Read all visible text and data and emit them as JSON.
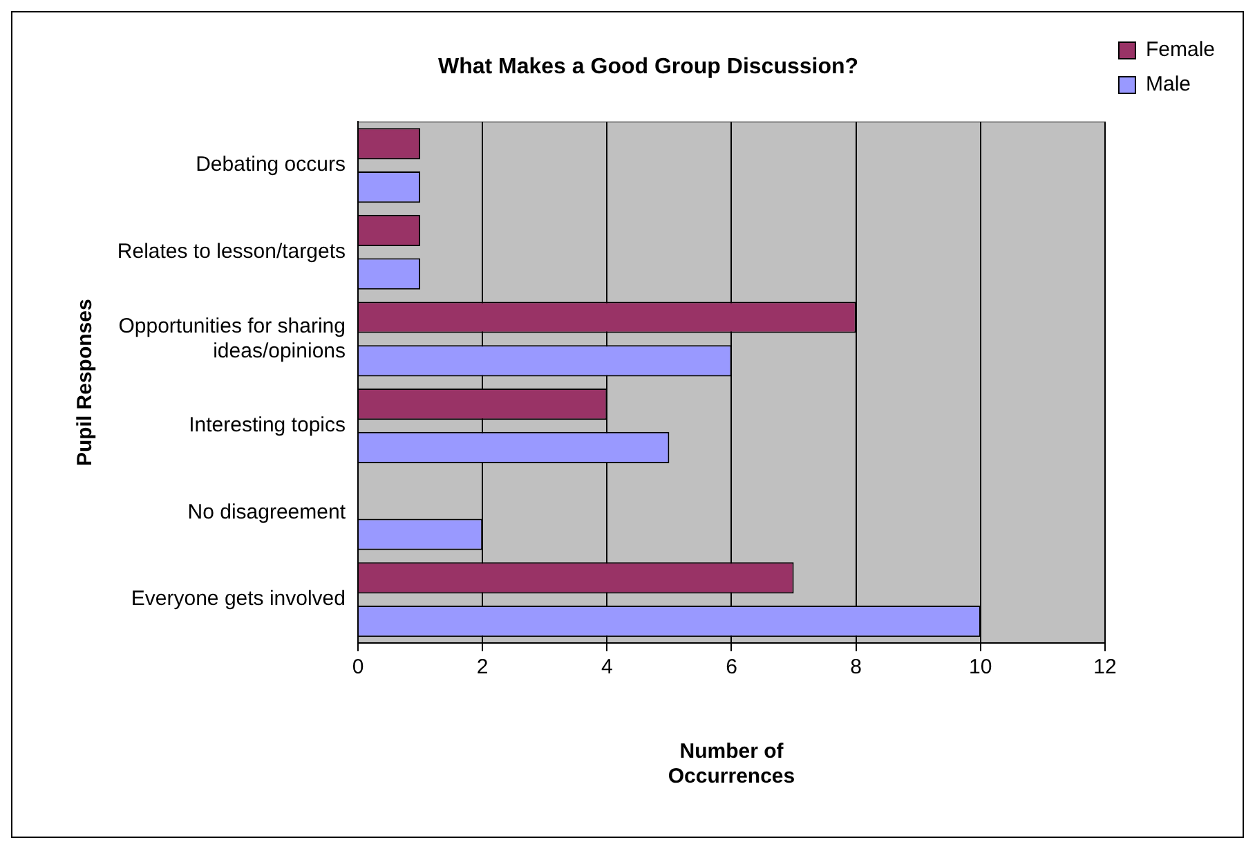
{
  "chart_data": {
    "type": "bar",
    "orientation": "horizontal",
    "title": "What Makes a Good Group Discussion?",
    "xlabel": "Number of Occurrences",
    "ylabel": "Pupil Responses",
    "categories": [
      "Debating occurs",
      "Relates to lesson/targets",
      "Opportunities for sharing ideas/opinions",
      "Interesting topics",
      "No disagreement",
      "Everyone gets involved"
    ],
    "series": [
      {
        "name": "Female",
        "color": "#993366",
        "values": [
          1,
          1,
          8,
          4,
          0,
          7
        ]
      },
      {
        "name": "Male",
        "color": "#9999ff",
        "values": [
          1,
          1,
          6,
          5,
          2,
          10
        ]
      }
    ],
    "xlim": [
      0,
      12
    ],
    "xticks": [
      0,
      2,
      4,
      6,
      8,
      10,
      12
    ],
    "grid": "x",
    "legend": "top right"
  }
}
